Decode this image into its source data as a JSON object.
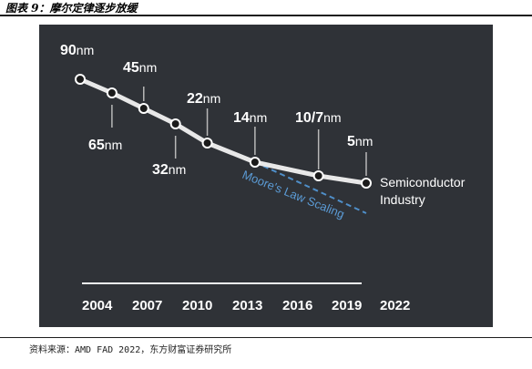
{
  "figure_title": "图表 9：摩尔定律逐步放缓",
  "source_note": "资料来源：AMD FAD 2022，东方财富证券研究所",
  "colors": {
    "panel_bg": "#2f3237",
    "line": "#e8e8e8",
    "dashed": "#4f8fc9",
    "text": "#ffffff",
    "label_blue": "#5b9bd5"
  },
  "chart_data": {
    "type": "line",
    "title": "",
    "xlabel": "",
    "ylabel": "",
    "x_ticks": [
      "2004",
      "2007",
      "2010",
      "2013",
      "2016",
      "2019",
      "2022"
    ],
    "x_range": [
      2004,
      2022
    ],
    "grid": false,
    "series": [
      {
        "name": "Semiconductor Industry",
        "points": [
          {
            "year": 2004,
            "node": "90nm"
          },
          {
            "year": 2006,
            "node": "65nm"
          },
          {
            "year": 2008,
            "node": "45nm"
          },
          {
            "year": 2010,
            "node": "32nm"
          },
          {
            "year": 2012,
            "node": "22nm"
          },
          {
            "year": 2015,
            "node": "14nm"
          },
          {
            "year": 2019,
            "node": "10/7nm"
          },
          {
            "year": 2022,
            "node": "5nm"
          }
        ]
      },
      {
        "name": "Moore's Law Scaling",
        "style": "dashed",
        "points": [
          {
            "year": 2015
          },
          {
            "year": 2022
          }
        ]
      }
    ]
  }
}
